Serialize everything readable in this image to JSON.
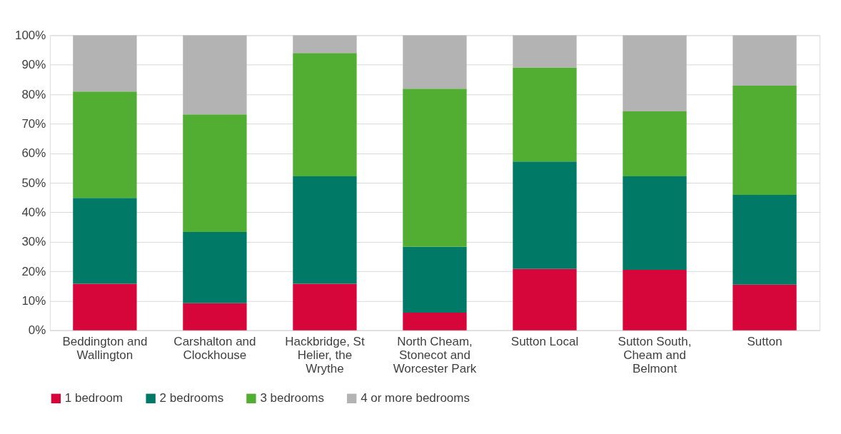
{
  "chart_data": {
    "type": "bar",
    "stacked": true,
    "categories": [
      "Beddington and Wallington",
      "Carshalton and Clockhouse",
      "Hackbridge, St Helier, the Wrythe",
      "North Cheam, Stonecot and Worcester Park",
      "Sutton Local",
      "Sutton South, Cheam and Belmont",
      "Sutton"
    ],
    "series": [
      {
        "name": "1 bedroom",
        "color": "#d7063a",
        "values": [
          15.8,
          9.2,
          15.8,
          6.0,
          20.8,
          20.5,
          15.5
        ]
      },
      {
        "name": "2 bedrooms",
        "color": "#007a66",
        "values": [
          29.1,
          24.1,
          36.4,
          22.3,
          36.4,
          31.7,
          30.4
        ]
      },
      {
        "name": "3 bedrooms",
        "color": "#52ad33",
        "values": [
          36.0,
          39.9,
          41.8,
          53.6,
          31.9,
          22.0,
          37.0
        ]
      },
      {
        "name": "4 or more bedrooms",
        "color": "#b3b3b3",
        "values": [
          19.1,
          26.8,
          6.0,
          18.1,
          10.9,
          25.8,
          17.1
        ]
      }
    ],
    "ylim": [
      0,
      100
    ],
    "yticks": [
      {
        "value": 0,
        "label": "0%"
      },
      {
        "value": 10,
        "label": "10%"
      },
      {
        "value": 20,
        "label": "20%"
      },
      {
        "value": 30,
        "label": "30%"
      },
      {
        "value": 40,
        "label": "40%"
      },
      {
        "value": 50,
        "label": "50%"
      },
      {
        "value": 60,
        "label": "60%"
      },
      {
        "value": 70,
        "label": "70%"
      },
      {
        "value": 80,
        "label": "80%"
      },
      {
        "value": 90,
        "label": "90%"
      },
      {
        "value": 100,
        "label": "100%"
      }
    ],
    "grid": "y",
    "legend": "bottom"
  }
}
